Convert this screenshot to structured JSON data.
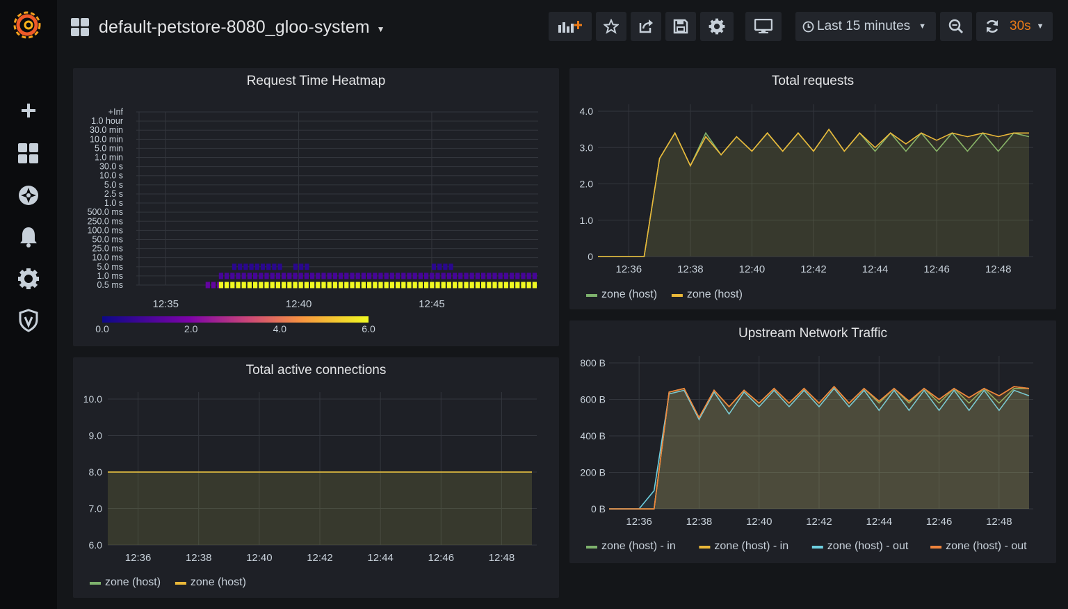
{
  "dashboard": {
    "title": "default-petstore-8080_gloo-system"
  },
  "toolbar": {
    "time_range": "Last 15 minutes",
    "refresh_interval": "30s"
  },
  "icons": {
    "logo": "grafana-logo",
    "sidebar": [
      "plus-icon",
      "dashboards-icon",
      "explore-icon",
      "bell-icon",
      "gear-icon",
      "shield-icon"
    ],
    "toolbar": [
      "add-panel-icon",
      "star-icon",
      "share-icon",
      "save-icon",
      "settings-icon",
      "tv-mode-icon",
      "clock-icon",
      "zoom-out-icon",
      "refresh-icon"
    ]
  },
  "colors": {
    "green": "#7eb26d",
    "yellow": "#eab839",
    "blue": "#6ed0e0",
    "orange": "#ef843c",
    "refresh_accent": "#eb7b18"
  },
  "panels": {
    "heatmap": {
      "title": "Request Time Heatmap",
      "y_buckets": [
        "+Inf",
        "1.0 hour",
        "30.0 min",
        "10.0 min",
        "5.0 min",
        "1.0 min",
        "30.0 s",
        "10.0 s",
        "5.0 s",
        "2.5 s",
        "1.0 s",
        "500.0 ms",
        "250.0 ms",
        "100.0 ms",
        "50.0 ms",
        "25.0 ms",
        "10.0 ms",
        "5.0 ms",
        "1.0 ms",
        "0.5 ms"
      ],
      "x_ticks": [
        "12:35",
        "12:40",
        "12:45"
      ],
      "scale": {
        "min": 0,
        "max": 6.0,
        "tick_labels": [
          "0.0",
          "2.0",
          "4.0",
          "6.0"
        ]
      }
    },
    "total_requests": {
      "title": "Total requests",
      "x_ticks": [
        "12:36",
        "12:38",
        "12:40",
        "12:42",
        "12:44",
        "12:46",
        "12:48"
      ],
      "y_ticks": [
        "0",
        "1.0",
        "2.0",
        "3.0",
        "4.0"
      ],
      "legend": [
        {
          "label": "zone (host)",
          "color": "#7eb26d"
        },
        {
          "label": "zone (host)",
          "color": "#eab839"
        }
      ]
    },
    "active_connections": {
      "title": "Total active connections",
      "x_ticks": [
        "12:36",
        "12:38",
        "12:40",
        "12:42",
        "12:44",
        "12:46",
        "12:48"
      ],
      "y_ticks": [
        "6.0",
        "7.0",
        "8.0",
        "9.0",
        "10.0"
      ],
      "legend": [
        {
          "label": "zone (host)",
          "color": "#7eb26d"
        },
        {
          "label": "zone (host)",
          "color": "#eab839"
        }
      ]
    },
    "network_traffic": {
      "title": "Upstream Network Traffic",
      "x_ticks": [
        "12:36",
        "12:38",
        "12:40",
        "12:42",
        "12:44",
        "12:46",
        "12:48"
      ],
      "y_ticks": [
        "0 B",
        "200 B",
        "400 B",
        "600 B",
        "800 B"
      ],
      "legend": [
        {
          "label": "zone (host) - in",
          "color": "#7eb26d"
        },
        {
          "label": "zone (host) - in",
          "color": "#eab839"
        },
        {
          "label": "zone (host) - out",
          "color": "#6ed0e0"
        },
        {
          "label": "zone (host) - out",
          "color": "#ef843c"
        }
      ]
    }
  },
  "chart_data": [
    {
      "type": "heatmap",
      "title": "Request Time Heatmap",
      "x_range": [
        "12:34",
        "12:49"
      ],
      "y_categories": [
        "+Inf",
        "1.0 hour",
        "30.0 min",
        "10.0 min",
        "5.0 min",
        "1.0 min",
        "30.0 s",
        "10.0 s",
        "5.0 s",
        "2.5 s",
        "1.0 s",
        "500.0 ms",
        "250.0 ms",
        "100.0 ms",
        "50.0 ms",
        "25.0 ms",
        "10.0 ms",
        "5.0 ms",
        "1.0 ms",
        "0.5 ms"
      ],
      "color_scale": [
        0,
        6.0
      ],
      "rows": [
        {
          "bucket": "0.5 ms",
          "segments": [
            {
              "from": "12:36.5",
              "to": "12:37.0",
              "value": 1.5
            },
            {
              "from": "12:37.0",
              "to": "12:49.0",
              "value": 6.0
            }
          ]
        },
        {
          "bucket": "1.0 ms",
          "segments": [
            {
              "from": "12:37.0",
              "to": "12:49.0",
              "value": 1.0
            }
          ]
        },
        {
          "bucket": "5.0 ms",
          "segments": [
            {
              "from": "12:37.5",
              "to": "12:39.3",
              "value": 0.5
            },
            {
              "from": "12:39.8",
              "to": "12:40.3",
              "value": 0.5
            },
            {
              "from": "12:45.0",
              "to": "12:45.7",
              "value": 0.5
            }
          ]
        }
      ]
    },
    {
      "type": "area",
      "title": "Total requests",
      "ylim": [
        0,
        4.0
      ],
      "x": [
        "12:35.0",
        "12:36.0",
        "12:36.5",
        "12:37.0",
        "12:37.5",
        "12:38.0",
        "12:38.5",
        "12:39.0",
        "12:39.5",
        "12:40.0",
        "12:40.5",
        "12:41.0",
        "12:41.5",
        "12:42.0",
        "12:42.5",
        "12:43.0",
        "12:43.5",
        "12:44.0",
        "12:44.5",
        "12:45.0",
        "12:45.5",
        "12:46.0",
        "12:46.5",
        "12:47.0",
        "12:47.5",
        "12:48.0",
        "12:48.5",
        "12:49.0"
      ],
      "series": [
        {
          "name": "zone (host)",
          "values": [
            0,
            0,
            0,
            2.7,
            3.4,
            2.5,
            3.4,
            2.8,
            3.3,
            2.9,
            3.4,
            2.9,
            3.4,
            2.9,
            3.5,
            2.9,
            3.4,
            2.9,
            3.4,
            2.9,
            3.4,
            2.9,
            3.4,
            2.9,
            3.4,
            2.9,
            3.4,
            3.3
          ]
        },
        {
          "name": "zone (host)",
          "values": [
            0,
            0,
            0,
            2.7,
            3.4,
            2.5,
            3.3,
            2.8,
            3.3,
            2.9,
            3.4,
            2.9,
            3.4,
            2.9,
            3.5,
            2.9,
            3.4,
            3.0,
            3.4,
            3.1,
            3.4,
            3.2,
            3.4,
            3.3,
            3.4,
            3.3,
            3.4,
            3.4
          ]
        }
      ]
    },
    {
      "type": "area",
      "title": "Total active connections",
      "ylim": [
        6.0,
        10.0
      ],
      "x": [
        "12:35",
        "12:49"
      ],
      "series": [
        {
          "name": "zone (host)",
          "values": [
            8.0,
            8.0
          ]
        },
        {
          "name": "zone (host)",
          "values": [
            8.0,
            8.0
          ]
        }
      ]
    },
    {
      "type": "area",
      "title": "Upstream Network Traffic",
      "ylim": [
        0,
        800
      ],
      "x": [
        "12:35.0",
        "12:36.0",
        "12:36.5",
        "12:37.0",
        "12:37.5",
        "12:38.0",
        "12:38.5",
        "12:39.0",
        "12:39.5",
        "12:40.0",
        "12:40.5",
        "12:41.0",
        "12:41.5",
        "12:42.0",
        "12:42.5",
        "12:43.0",
        "12:43.5",
        "12:44.0",
        "12:44.5",
        "12:45.0",
        "12:45.5",
        "12:46.0",
        "12:46.5",
        "12:47.0",
        "12:47.5",
        "12:48.0",
        "12:48.5",
        "12:49.0"
      ],
      "series": [
        {
          "name": "zone (host) - in",
          "values": [
            0,
            0,
            0,
            640,
            660,
            500,
            650,
            560,
            650,
            580,
            660,
            580,
            660,
            580,
            670,
            580,
            660,
            580,
            660,
            580,
            660,
            580,
            660,
            580,
            660,
            580,
            660,
            660
          ]
        },
        {
          "name": "zone (host) - in",
          "values": [
            0,
            0,
            0,
            640,
            660,
            500,
            650,
            560,
            650,
            580,
            660,
            580,
            660,
            580,
            670,
            580,
            660,
            590,
            660,
            590,
            660,
            600,
            660,
            610,
            660,
            620,
            670,
            660
          ]
        },
        {
          "name": "zone (host) - out",
          "values": [
            0,
            0,
            100,
            630,
            650,
            490,
            640,
            520,
            640,
            560,
            650,
            560,
            650,
            560,
            660,
            560,
            650,
            540,
            650,
            540,
            650,
            540,
            650,
            540,
            650,
            540,
            650,
            620
          ]
        },
        {
          "name": "zone (host) - out",
          "values": [
            0,
            0,
            0,
            640,
            660,
            500,
            650,
            560,
            650,
            580,
            660,
            580,
            660,
            580,
            670,
            580,
            660,
            590,
            660,
            590,
            660,
            600,
            660,
            610,
            660,
            620,
            670,
            660
          ]
        }
      ]
    }
  ]
}
